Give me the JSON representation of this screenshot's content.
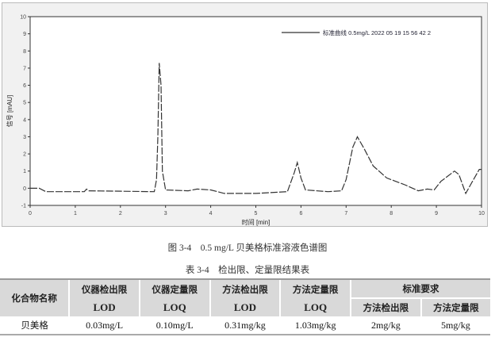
{
  "chart_data": {
    "type": "line",
    "xlabel": "时间 [min]",
    "ylabel": "信号 [mAU]",
    "xlim": [
      0,
      10
    ],
    "ylim": [
      -1,
      10
    ],
    "xticks": [
      0,
      1,
      2,
      3,
      4,
      5,
      6,
      7,
      8,
      9,
      10
    ],
    "yticks": [
      -1,
      0,
      1,
      2,
      3,
      4,
      5,
      6,
      7,
      8,
      9,
      10
    ],
    "legend": "top-right",
    "series": [
      {
        "name": "标准曲线 0.5mg/L 2022 05 19 15 56 42 2",
        "x": [
          0,
          0.2,
          0.35,
          1.2,
          1.25,
          1.3,
          2.75,
          2.8,
          2.83,
          2.86,
          2.9,
          2.93,
          3.0,
          3.5,
          3.7,
          4.0,
          4.3,
          5.0,
          5.7,
          5.85,
          5.92,
          6.0,
          6.1,
          6.6,
          6.9,
          7.0,
          7.15,
          7.25,
          7.4,
          7.6,
          7.9,
          8.3,
          8.6,
          8.8,
          8.95,
          9.1,
          9.4,
          9.5,
          9.65,
          9.8,
          9.95,
          10
        ],
        "y": [
          0,
          0,
          -0.2,
          -0.2,
          -0.05,
          -0.15,
          -0.2,
          0.5,
          3,
          7.3,
          6,
          1,
          -0.1,
          -0.15,
          -0.05,
          -0.1,
          -0.3,
          -0.3,
          -0.2,
          0.9,
          1.5,
          0.6,
          -0.1,
          -0.2,
          -0.15,
          0.5,
          2.4,
          3.0,
          2.3,
          1.3,
          0.6,
          0.2,
          -0.15,
          -0.05,
          -0.1,
          0.4,
          1.0,
          0.8,
          -0.3,
          0.4,
          1.1,
          1.1
        ],
        "color": "#333333"
      }
    ]
  },
  "figure_caption": "图 3-4　0.5 mg/L 贝美格标准溶液色谱图",
  "table": {
    "caption": "表 3-4　检出限、定量限结果表",
    "header1": [
      "化合物名称",
      "仪器检出限",
      "仪器定量限",
      "方法检出限",
      "方法定量限",
      "标准要求"
    ],
    "header2": [
      "LOD",
      "LOQ",
      "LOD",
      "LOQ",
      "方法检出限",
      "方法定量限"
    ],
    "rows": [
      [
        "贝美格",
        "0.03mg/L",
        "0.10mg/L",
        "0.31mg/kg",
        "1.03mg/kg",
        "2mg/kg",
        "5mg/kg"
      ]
    ]
  }
}
